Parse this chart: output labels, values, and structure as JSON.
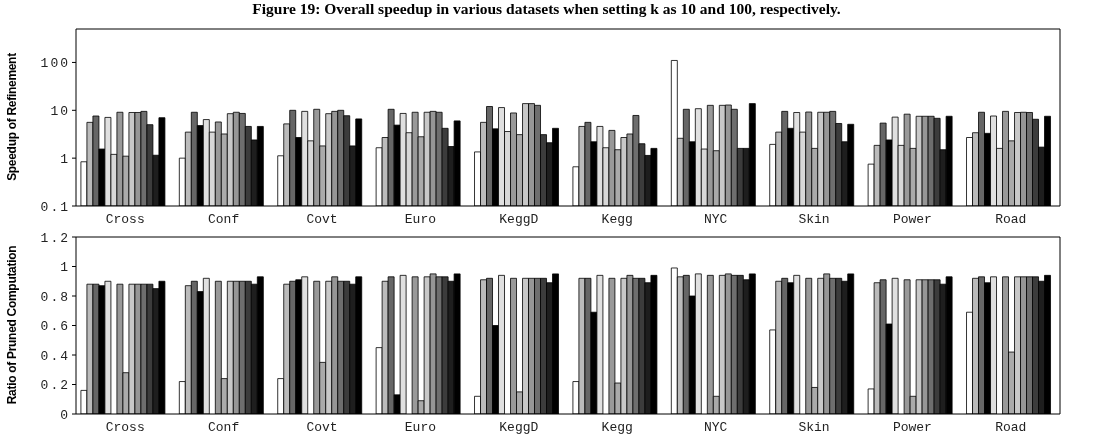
{
  "chart_data": [
    {
      "type": "bar",
      "title": "Figure 19: Overall speedup in various datasets when setting k as 10 and 100, respectively.",
      "ylabel": "Speedup of Refinement",
      "log": true,
      "ylim": [
        0.1,
        500
      ],
      "yticks": [
        0.1,
        1,
        10,
        100
      ],
      "categories": [
        "Cross",
        "Conf",
        "Covt",
        "Euro",
        "KeggD",
        "Kegg",
        "NYC",
        "Skin",
        "Power",
        "Road"
      ],
      "series": [
        {
          "color": "#ffffff",
          "values": [
            0.84,
            1.0,
            1.12,
            1.65,
            1.35,
            0.66,
            110,
            1.94,
            0.75,
            2.7
          ]
        },
        {
          "color": "#bbbbbb",
          "values": [
            5.6,
            3.5,
            5.2,
            2.7,
            5.6,
            4.6,
            2.6,
            3.5,
            1.85,
            3.4
          ]
        },
        {
          "color": "#666666",
          "values": [
            7.6,
            9.1,
            10,
            10.5,
            12,
            5.6,
            10.5,
            9.5,
            5.4,
            9.1
          ]
        },
        {
          "color": "#000000",
          "values": [
            1.55,
            4.8,
            2.7,
            4.9,
            4.1,
            2.2,
            2.2,
            4.2,
            2.4,
            3.3
          ]
        },
        {
          "color": "#e0e0e0",
          "values": [
            7.1,
            6.4,
            9.5,
            8.6,
            11.4,
            4.6,
            10.8,
            9,
            7.2,
            7.6
          ]
        },
        {
          "color": "#d8d8d8",
          "values": [
            1.2,
            3.5,
            2.3,
            3.4,
            3.6,
            1.65,
            1.55,
            3.5,
            1.85,
            1.6
          ]
        },
        {
          "color": "#999999",
          "values": [
            9.1,
            5.7,
            10.5,
            9.1,
            8.8,
            3.8,
            12.7,
            9.2,
            8.3,
            9.5
          ]
        },
        {
          "color": "#aaaaaa",
          "values": [
            1.1,
            3.2,
            1.8,
            2.8,
            3.1,
            1.5,
            1.43,
            1.6,
            1.6,
            2.3
          ]
        },
        {
          "color": "#c8c8c8",
          "values": [
            9,
            8.5,
            8.5,
            9.1,
            13.8,
            2.7,
            12.7,
            9.1,
            7.5,
            9
          ]
        },
        {
          "color": "#969696",
          "values": [
            9,
            9.1,
            9.5,
            9.5,
            13.8,
            3.2,
            12.9,
            9.1,
            7.5,
            9.1
          ]
        },
        {
          "color": "#6e6e6e",
          "values": [
            9.5,
            8.6,
            10,
            9.1,
            12.7,
            7.8,
            10.5,
            9.5,
            7.5,
            9
          ]
        },
        {
          "color": "#3c3c3c",
          "values": [
            5.0,
            4.6,
            7.7,
            4.2,
            3.1,
            2.0,
            1.6,
            5.3,
            6.8,
            6.5
          ]
        },
        {
          "color": "#1e1e1e",
          "values": [
            1.15,
            2.4,
            1.8,
            1.75,
            2.1,
            1.14,
            1.6,
            2.2,
            1.5,
            1.7
          ]
        },
        {
          "color": "#000000",
          "values": [
            7.0,
            4.6,
            6.6,
            6.0,
            4.2,
            1.6,
            13.8,
            5.1,
            7.5,
            7.5
          ]
        }
      ]
    },
    {
      "type": "bar",
      "ylabel": "Ratio of Pruned Computation",
      "ylim": [
        0,
        1.2
      ],
      "yticks": [
        0,
        0.2,
        0.4,
        0.6,
        0.8,
        1,
        1.2
      ],
      "categories": [
        "Cross",
        "Conf",
        "Covt",
        "Euro",
        "KeggD",
        "Kegg",
        "NYC",
        "Skin",
        "Power",
        "Road"
      ],
      "series": [
        {
          "color": "#ffffff",
          "values": [
            0.16,
            0.22,
            0.24,
            0.45,
            0.12,
            0.22,
            0.99,
            0.57,
            0.17,
            0.69
          ]
        },
        {
          "color": "#bbbbbb",
          "values": [
            0.88,
            0.87,
            0.88,
            0.9,
            0.91,
            0.92,
            0.93,
            0.9,
            0.89,
            0.92
          ]
        },
        {
          "color": "#666666",
          "values": [
            0.88,
            0.9,
            0.9,
            0.93,
            0.92,
            0.92,
            0.94,
            0.92,
            0.91,
            0.93
          ]
        },
        {
          "color": "#000000",
          "values": [
            0.87,
            0.83,
            0.91,
            0.13,
            0.6,
            0.69,
            0.8,
            0.89,
            0.61,
            0.89
          ]
        },
        {
          "color": "#e0e0e0",
          "values": [
            0.9,
            0.92,
            0.93,
            0.94,
            0.94,
            0.94,
            0.95,
            0.94,
            0.92,
            0.93
          ]
        },
        {
          "color": "#d8d8d8",
          "values": [
            null,
            null,
            null,
            null,
            null,
            null,
            null,
            null,
            null,
            null
          ]
        },
        {
          "color": "#999999",
          "values": [
            0.88,
            0.9,
            0.9,
            0.93,
            0.92,
            0.92,
            0.94,
            0.92,
            0.91,
            0.93
          ]
        },
        {
          "color": "#aaaaaa",
          "values": [
            0.28,
            0.24,
            0.35,
            0.09,
            0.15,
            0.21,
            0.12,
            0.18,
            0.12,
            0.42
          ]
        },
        {
          "color": "#c8c8c8",
          "values": [
            0.88,
            0.9,
            0.9,
            0.93,
            0.92,
            0.92,
            0.94,
            0.92,
            0.91,
            0.93
          ]
        },
        {
          "color": "#969696",
          "values": [
            0.88,
            0.9,
            0.93,
            0.95,
            0.92,
            0.94,
            0.95,
            0.95,
            0.91,
            0.93
          ]
        },
        {
          "color": "#6e6e6e",
          "values": [
            0.88,
            0.9,
            0.9,
            0.93,
            0.92,
            0.92,
            0.94,
            0.92,
            0.91,
            0.93
          ]
        },
        {
          "color": "#3c3c3c",
          "values": [
            0.88,
            0.9,
            0.9,
            0.93,
            0.92,
            0.92,
            0.94,
            0.92,
            0.91,
            0.93
          ]
        },
        {
          "color": "#1e1e1e",
          "values": [
            0.85,
            0.88,
            0.88,
            0.9,
            0.89,
            0.89,
            0.91,
            0.9,
            0.88,
            0.9
          ]
        },
        {
          "color": "#000000",
          "values": [
            0.9,
            0.93,
            0.93,
            0.95,
            0.95,
            0.94,
            0.95,
            0.95,
            0.93,
            0.94
          ]
        }
      ]
    }
  ]
}
